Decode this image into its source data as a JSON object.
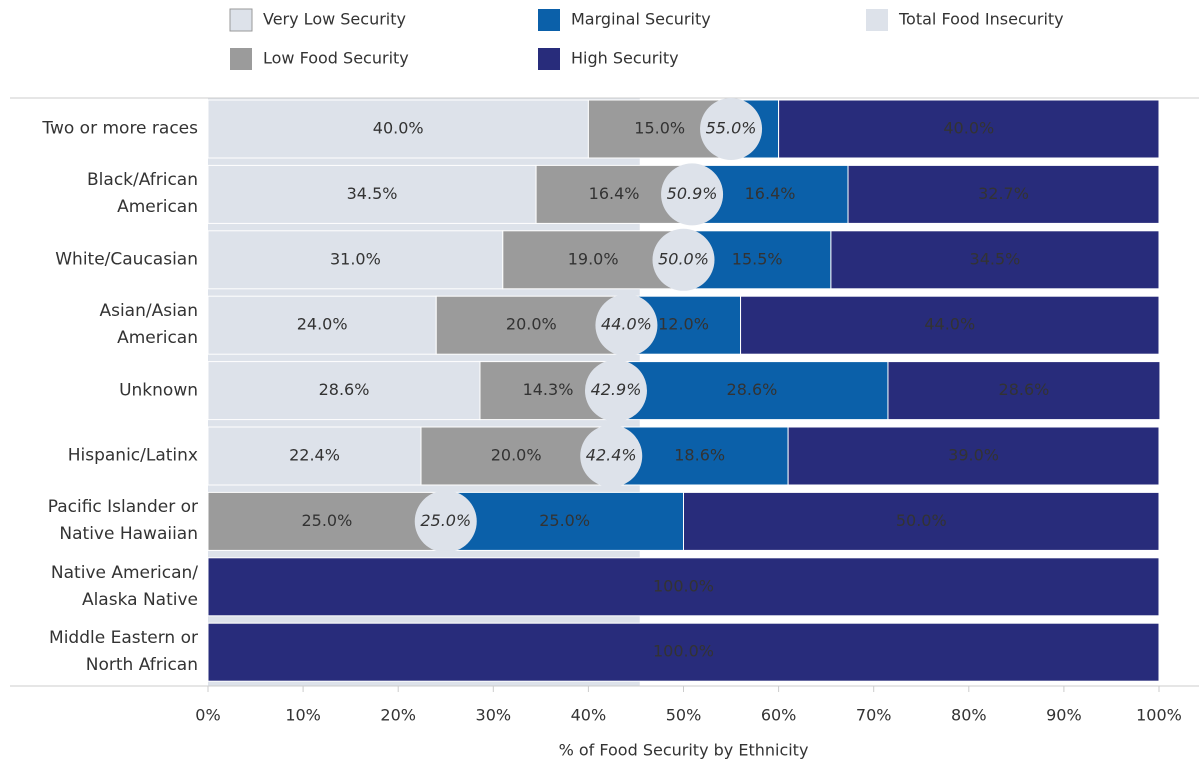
{
  "chart_data": {
    "type": "stacked_bar_horizontal",
    "categories": [
      "Two or more races",
      "Black/African\nAmerican",
      "White/Caucasian",
      "Asian/Asian\nAmerican",
      "Unknown",
      "Hispanic/Latinx",
      "Pacific Islander or\nNative Hawaiian",
      "Native American/\nAlaska Native",
      "Middle Eastern or\nNorth African"
    ],
    "series": [
      {
        "name": "Very Low Security",
        "color": "#dde2ea",
        "text_color": "#222222",
        "values": [
          40.0,
          34.5,
          31.0,
          24.0,
          28.6,
          22.4,
          null,
          null,
          null
        ],
        "value_labels": [
          "40.0%",
          "34.5%",
          "31.0%",
          "24.0%",
          "28.6%",
          "22.4%",
          null,
          null,
          null
        ]
      },
      {
        "name": "Low Food Security",
        "color": "#9b9b9b",
        "text_color": "#222222",
        "values": [
          15.0,
          16.4,
          19.0,
          20.0,
          14.3,
          20.0,
          25.0,
          null,
          null
        ],
        "value_labels": [
          "15.0%",
          "16.4%",
          "19.0%",
          "20.0%",
          "14.3%",
          "20.0%",
          "25.0%",
          null,
          null
        ]
      },
      {
        "name": "Marginal Security",
        "color": "#0b60a9",
        "text_color": "#ffffff",
        "values": [
          5.0,
          16.4,
          15.5,
          12.0,
          28.6,
          18.6,
          25.0,
          null,
          null
        ],
        "value_labels": [
          null,
          "16.4%",
          "15.5%",
          "12.0%",
          "28.6%",
          "18.6%",
          "25.0%",
          null,
          null
        ]
      },
      {
        "name": "High Security",
        "color": "#282c7b",
        "text_color": "#ffffff",
        "values": [
          40.0,
          32.7,
          34.5,
          44.0,
          28.6,
          39.0,
          50.0,
          100.0,
          100.0
        ],
        "value_labels": [
          "40.0%",
          "32.7%",
          "34.5%",
          "44.0%",
          "28.6%",
          "39.0%",
          "50.0%",
          "100.0%",
          "100.0%"
        ]
      }
    ],
    "total": {
      "name": "Total Food Insecurity",
      "color": "#dde2ea",
      "values": [
        55.0,
        50.9,
        50.0,
        44.0,
        42.9,
        42.4,
        25.0,
        null,
        null
      ],
      "value_labels": [
        "55.0%",
        "50.9%",
        "50.0%",
        "44.0%",
        "42.9%",
        "42.4%",
        "25.0%",
        null,
        null
      ],
      "reference_band": 45.4
    },
    "xlabel": "% of Food Security by Ethnicity",
    "xlim": [
      0,
      100
    ],
    "xticks": [
      {
        "value": 0,
        "label": "0%"
      },
      {
        "value": 10,
        "label": "10%"
      },
      {
        "value": 20,
        "label": "20%"
      },
      {
        "value": 30,
        "label": "30%"
      },
      {
        "value": 40,
        "label": "40%"
      },
      {
        "value": 50,
        "label": "50%"
      },
      {
        "value": 60,
        "label": "60%"
      },
      {
        "value": 70,
        "label": "70%"
      },
      {
        "value": 80,
        "label": "80%"
      },
      {
        "value": 90,
        "label": "90%"
      },
      {
        "value": 100,
        "label": "100%"
      }
    ]
  }
}
